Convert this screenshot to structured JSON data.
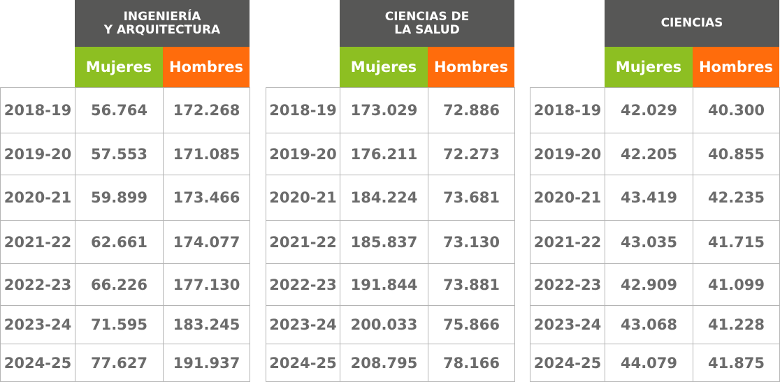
{
  "tables": [
    {
      "title": [
        "INGENIERÍA",
        "Y ARQUITECTURA"
      ],
      "columns": [
        "Mujeres",
        "Hombres"
      ],
      "rows": [
        [
          "2018-19",
          "56.764",
          "172.268"
        ],
        [
          "2019-20",
          "57.553",
          "171.085"
        ],
        [
          "2020-21",
          "59.899",
          "173.466"
        ],
        [
          "2021-22",
          "62.661",
          "174.077"
        ],
        [
          "2022-23",
          "66.226",
          "177.130"
        ],
        [
          "2023-24",
          "71.595",
          "183.245"
        ],
        [
          "2024-25",
          "77.627",
          "191.937"
        ]
      ]
    },
    {
      "title": [
        "CIENCIAS DE",
        "LA SALUD"
      ],
      "columns": [
        "Mujeres",
        "Hombres"
      ],
      "rows": [
        [
          "2018-19",
          "173.029",
          "72.886"
        ],
        [
          "2019-20",
          "176.211",
          "72.273"
        ],
        [
          "2020-21",
          "184.224",
          "73.681"
        ],
        [
          "2021-22",
          "185.837",
          "73.130"
        ],
        [
          "2022-23",
          "191.844",
          "73.881"
        ],
        [
          "2023-24",
          "200.033",
          "75.866"
        ],
        [
          "2024-25",
          "208.795",
          "78.166"
        ]
      ]
    },
    {
      "title": [
        "CIENCIAS"
      ],
      "columns": [
        "Mujeres",
        "Hombres"
      ],
      "rows": [
        [
          "2018-19",
          "42.029",
          "40.300"
        ],
        [
          "2019-20",
          "42.205",
          "40.855"
        ],
        [
          "2020-21",
          "43.419",
          "42.235"
        ],
        [
          "2021-22",
          "43.035",
          "41.715"
        ],
        [
          "2022-23",
          "42.909",
          "41.099"
        ],
        [
          "2023-24",
          "43.068",
          "41.228"
        ],
        [
          "2024-25",
          "44.079",
          "41.875"
        ]
      ]
    }
  ]
}
